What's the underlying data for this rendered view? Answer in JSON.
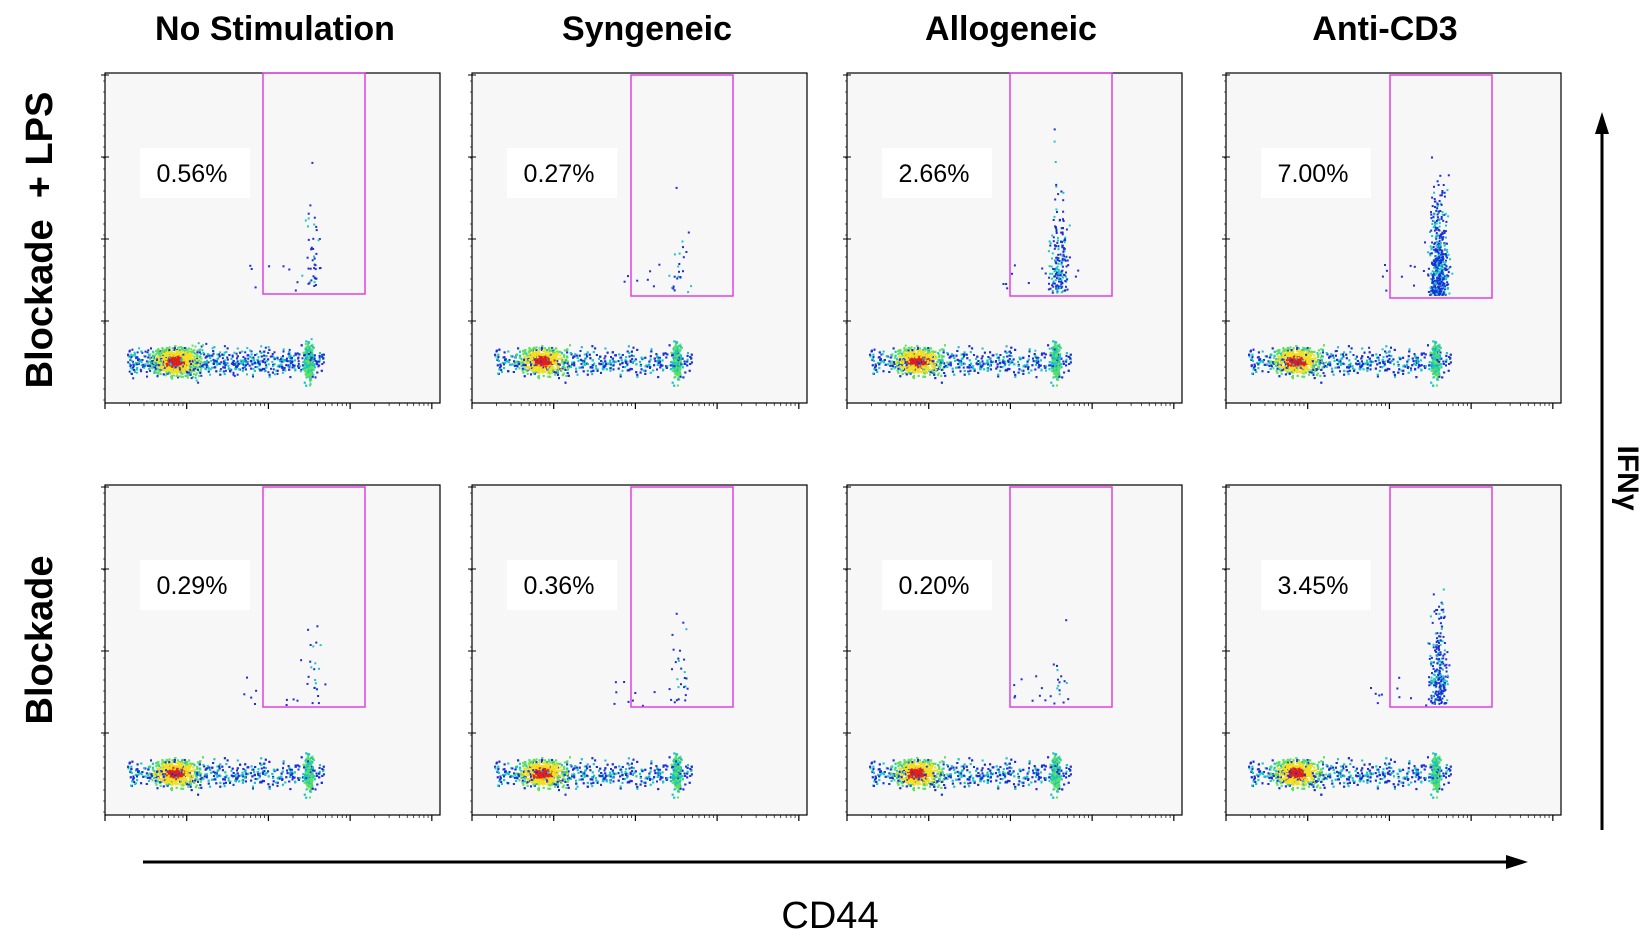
{
  "chart_data": {
    "type": "scatter",
    "subtype": "flow-cytometry-density-plot-grid",
    "x_axis_label": "CD44",
    "y_axis_label": "IFNγ",
    "x_scale": "log",
    "y_scale": "log",
    "columns": [
      "No Stimulation",
      "Syngeneic",
      "Allogeneic",
      "Anti-CD3"
    ],
    "rows": [
      "Blockade  + LPS",
      "Blockade"
    ],
    "gate": {
      "color": "#e040e0",
      "region": "CD44-high IFNγ-positive"
    },
    "panels": [
      {
        "row": 0,
        "col": 0,
        "gate_percent": "0.56%",
        "gate_events": 0.56
      },
      {
        "row": 0,
        "col": 1,
        "gate_percent": "0.27%",
        "gate_events": 0.27
      },
      {
        "row": 0,
        "col": 2,
        "gate_percent": "2.66%",
        "gate_events": 2.66
      },
      {
        "row": 0,
        "col": 3,
        "gate_percent": "7.00%",
        "gate_events": 7.0
      },
      {
        "row": 1,
        "col": 0,
        "gate_percent": "0.29%",
        "gate_events": 0.29
      },
      {
        "row": 1,
        "col": 1,
        "gate_percent": "0.36%",
        "gate_events": 0.36
      },
      {
        "row": 1,
        "col": 2,
        "gate_percent": "0.20%",
        "gate_events": 0.2
      },
      {
        "row": 1,
        "col": 3,
        "gate_percent": "3.45%",
        "gate_events": 3.45
      }
    ],
    "colors": {
      "density_low": "#1a2fd8",
      "density_mid": "#18c8c0",
      "density_high": "#f0e020",
      "density_peak": "#e02020",
      "plot_bg": "#f7f7f7"
    }
  }
}
